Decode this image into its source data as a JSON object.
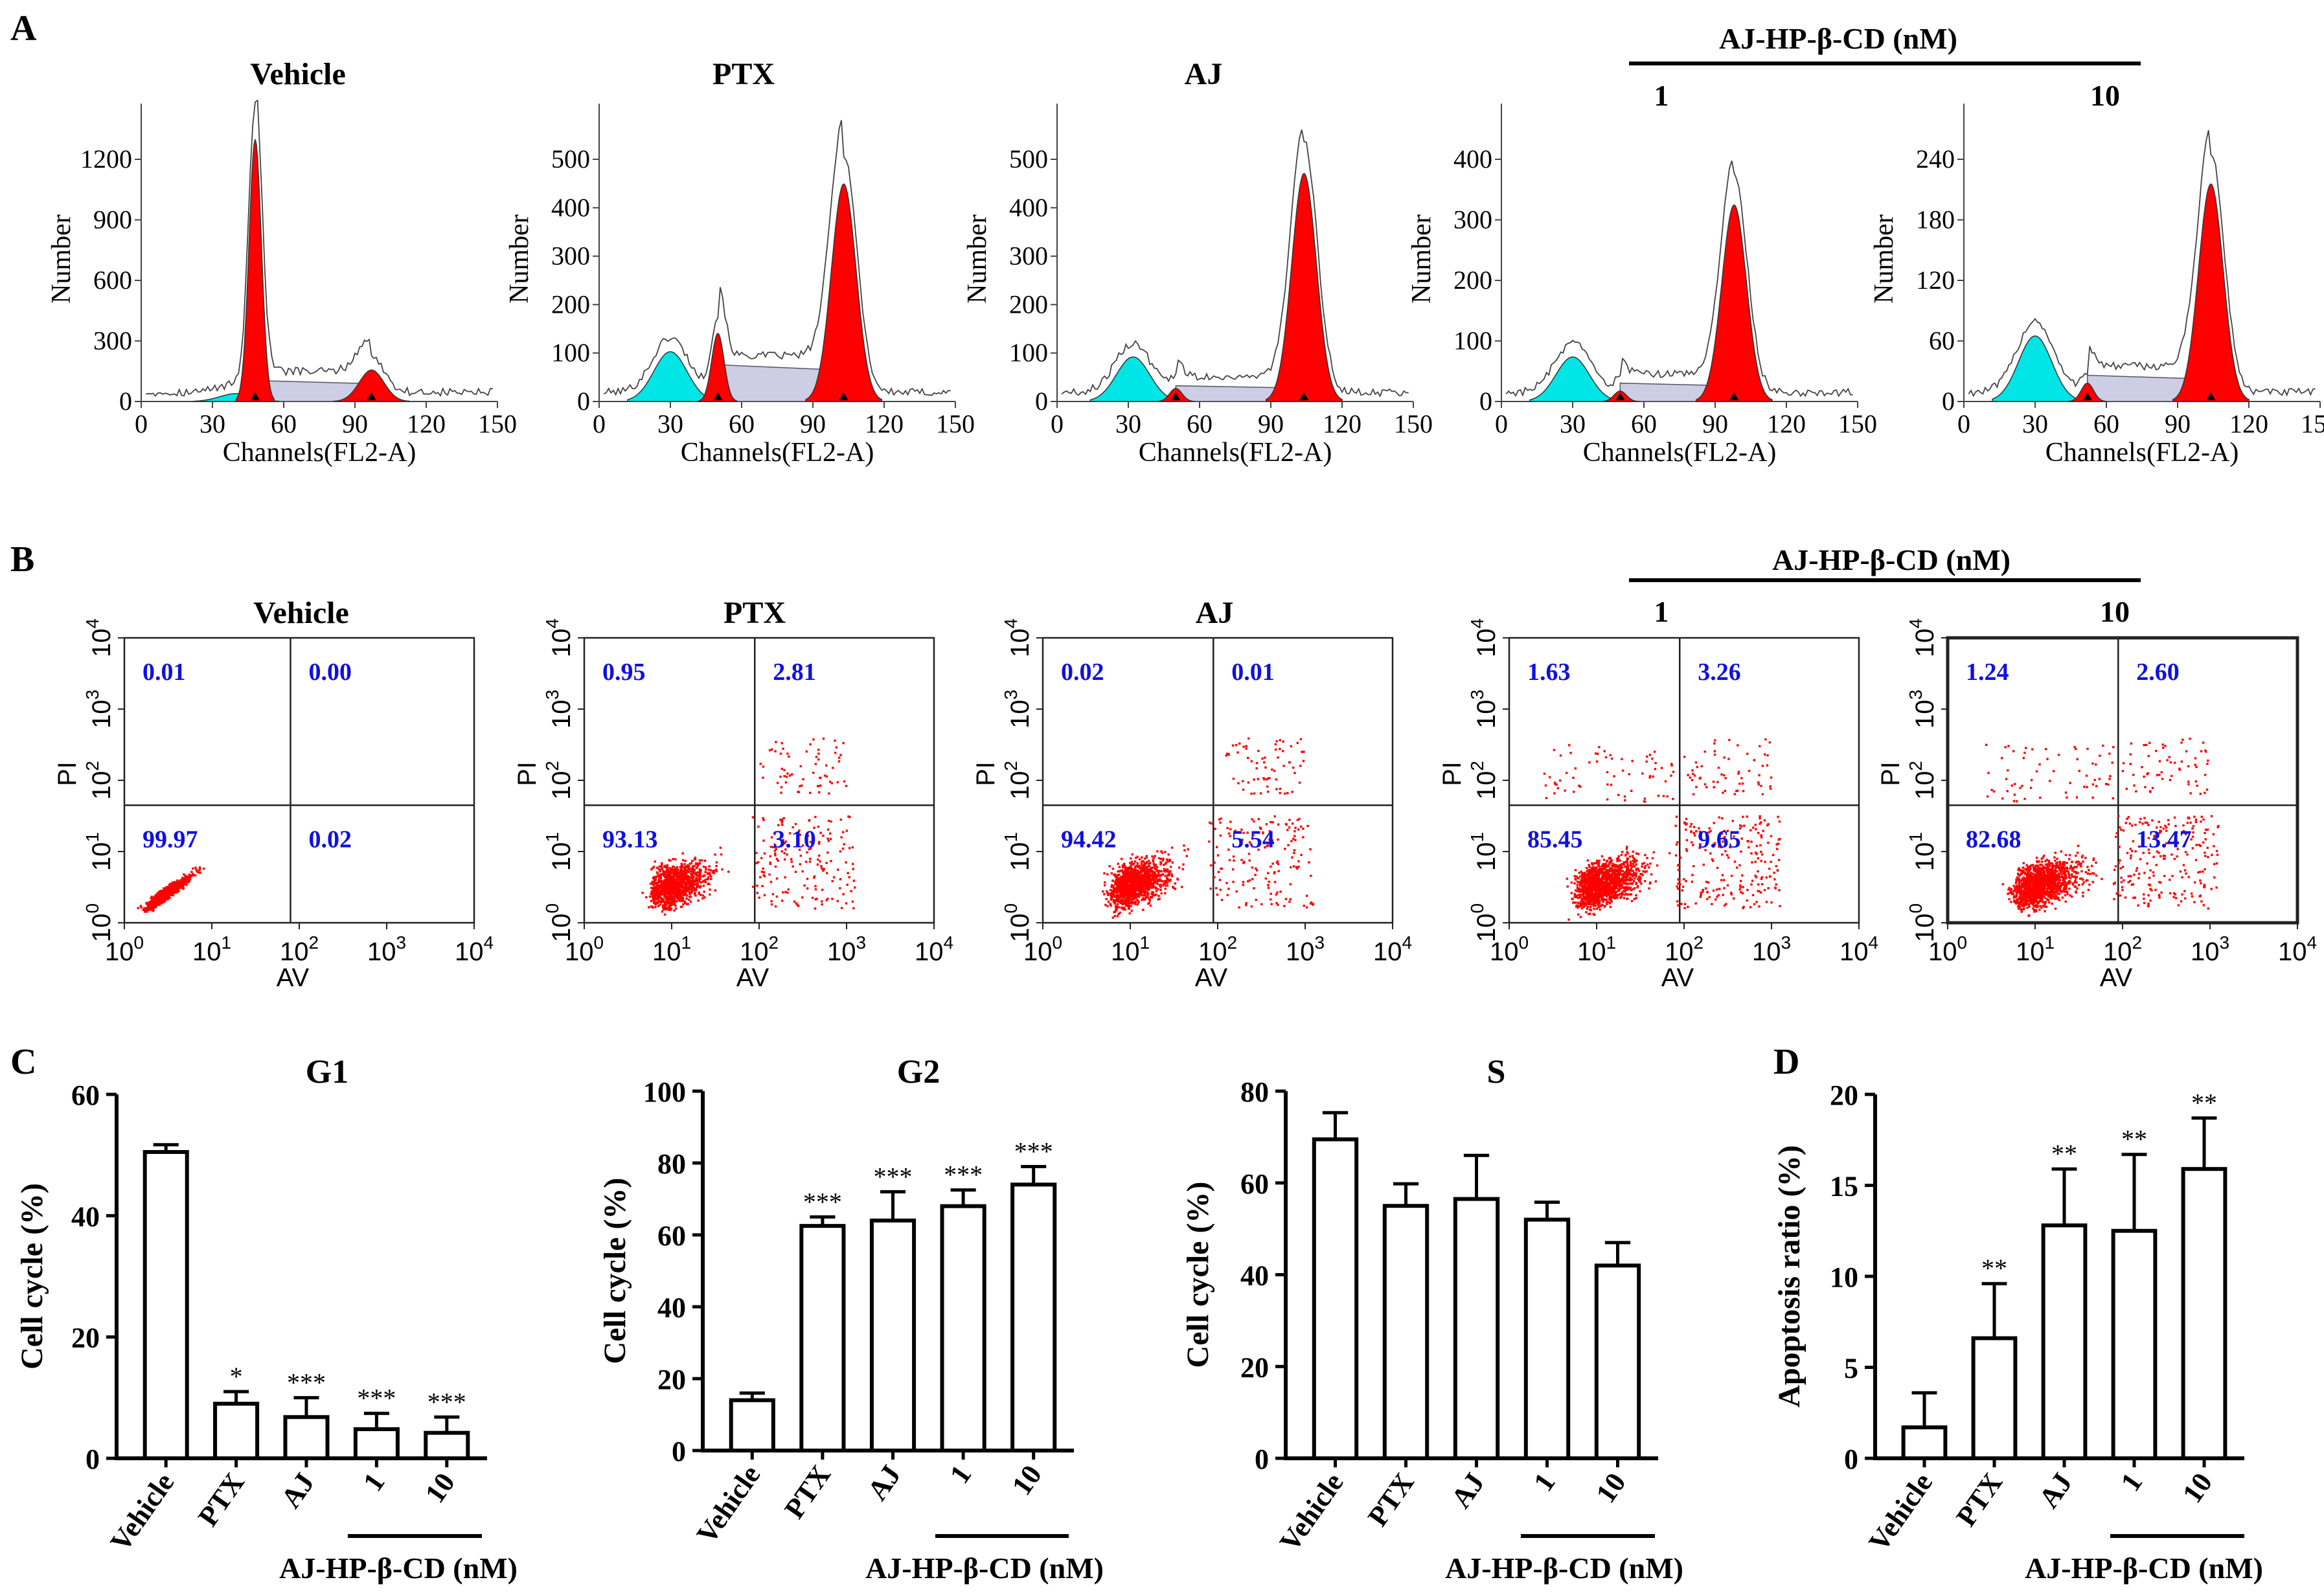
{
  "panel_labels": {
    "a": "A",
    "b": "B",
    "c": "C",
    "d": "D"
  },
  "group_header": {
    "title": "AJ-HP-β-CD (nM)",
    "low": "1",
    "high": "10"
  },
  "cell_cycle_histograms": {
    "x_label": "Channels(FL2-A)",
    "y_label": "Number",
    "x_ticks": [
      "0",
      "30",
      "60",
      "90",
      "120",
      "150"
    ],
    "panels": [
      {
        "title": "Vehicle",
        "y_ticks": [
          "0",
          "300",
          "600",
          "900",
          "1200"
        ]
      },
      {
        "title": "PTX",
        "y_ticks": [
          "0",
          "100",
          "200",
          "300",
          "400",
          "500"
        ]
      },
      {
        "title": "AJ",
        "y_ticks": [
          "0",
          "100",
          "200",
          "300",
          "400",
          "500"
        ]
      },
      {
        "title": "",
        "y_ticks": [
          "0",
          "100",
          "200",
          "300",
          "400"
        ]
      },
      {
        "title": "",
        "y_ticks": [
          "0",
          "60",
          "120",
          "180",
          "240"
        ]
      }
    ]
  },
  "apoptosis_scatter": {
    "x_label": "AV",
    "y_label": "PI",
    "axis_base": "10",
    "exponents": [
      "0",
      "1",
      "2",
      "3",
      "4"
    ],
    "panels": [
      {
        "title": "Vehicle",
        "ul": "0.01",
        "ur": "0.00",
        "ll": "99.97",
        "lr": "0.02"
      },
      {
        "title": "PTX",
        "ul": "0.95",
        "ur": "2.81",
        "ll": "93.13",
        "lr": "3.10"
      },
      {
        "title": "AJ",
        "ul": "0.02",
        "ur": "0.01",
        "ll": "94.42",
        "lr": "5.54"
      },
      {
        "title": "",
        "ul": "1.63",
        "ur": "3.26",
        "ll": "85.45",
        "lr": "9.65"
      },
      {
        "title": "",
        "ul": "1.24",
        "ur": "2.60",
        "ll": "82.68",
        "lr": "13.47"
      }
    ]
  },
  "colors": {
    "marker": "#ff0000",
    "quadrant_text": "#1010e0",
    "g1_fill": "#ff0000",
    "debris_fill": "#00e5e5",
    "s_fill": "#9090c8"
  },
  "chart_data": [
    {
      "type": "bar",
      "title": "G1",
      "ylabel": "Cell cycle (%)",
      "xlabel": "AJ-HP-β-CD (nM)",
      "categories": [
        "Vehicle",
        "PTX",
        "AJ",
        "1",
        "10"
      ],
      "values": [
        50.5,
        9,
        6.8,
        4.8,
        4.2
      ],
      "errors": [
        1.2,
        2,
        3.2,
        2.6,
        2.6
      ],
      "significance": [
        "",
        "*",
        "***",
        "***",
        "***"
      ],
      "ylim": [
        0,
        60
      ],
      "yticks": [
        "0",
        "20",
        "40",
        "60"
      ]
    },
    {
      "type": "bar",
      "title": "G2",
      "ylabel": "Cell cycle (%)",
      "xlabel": "AJ-HP-β-CD (nM)",
      "categories": [
        "Vehicle",
        "PTX",
        "AJ",
        "1",
        "10"
      ],
      "values": [
        14,
        62.5,
        64,
        68,
        74
      ],
      "errors": [
        2,
        2.5,
        8,
        4.5,
        5
      ],
      "significance": [
        "",
        "***",
        "***",
        "***",
        "***"
      ],
      "ylim": [
        0,
        100
      ],
      "yticks": [
        "0",
        "20",
        "40",
        "60",
        "80",
        "100"
      ]
    },
    {
      "type": "bar",
      "title": "S",
      "ylabel": "Cell cycle (%)",
      "xlabel": "AJ-HP-β-CD (nM)",
      "categories": [
        "Vehicle",
        "PTX",
        "AJ",
        "1",
        "10"
      ],
      "values": [
        69.5,
        55,
        56.5,
        52,
        42
      ],
      "errors": [
        5.8,
        4.8,
        9.5,
        3.8,
        5
      ],
      "significance": [
        "",
        "",
        "",
        "",
        ""
      ],
      "ylim": [
        0,
        80
      ],
      "yticks": [
        "0",
        "20",
        "40",
        "60",
        "80"
      ]
    },
    {
      "type": "bar",
      "title": "",
      "ylabel": "Apoptosis ratio (%)",
      "xlabel": "AJ-HP-β-CD (nM)",
      "categories": [
        "Vehicle",
        "PTX",
        "AJ",
        "1",
        "10"
      ],
      "values": [
        1.7,
        6.6,
        12.8,
        12.5,
        15.9
      ],
      "errors": [
        1.9,
        3,
        3.1,
        4.2,
        2.8
      ],
      "significance": [
        "",
        "**",
        "**",
        "**",
        "**"
      ],
      "ylim": [
        0,
        20
      ],
      "yticks": [
        "0",
        "5",
        "10",
        "15",
        "20"
      ]
    }
  ]
}
